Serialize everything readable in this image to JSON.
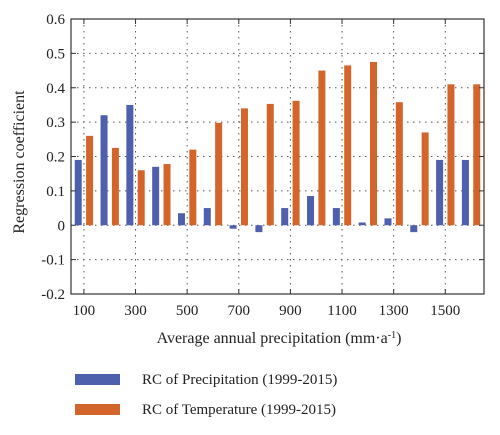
{
  "chart_data": {
    "type": "bar",
    "xlabel": "Average annual precipitation (mm·a",
    "xlabel_sup": "-1",
    "xlabel_tail": ")",
    "ylabel": "Regression coefficient",
    "ylim": [
      -0.2,
      0.6
    ],
    "yticks": [
      -0.2,
      -0.1,
      0,
      0.1,
      0.2,
      0.3,
      0.4,
      0.5,
      0.6
    ],
    "ytick_labels": [
      "-0.2",
      "-0.1",
      "0",
      "0.1",
      "0.2",
      "0.3",
      "0.4",
      "0.5",
      "0.6"
    ],
    "categories": [
      100,
      200,
      300,
      400,
      500,
      600,
      700,
      800,
      900,
      1000,
      1100,
      1200,
      1300,
      1400,
      1500,
      1600
    ],
    "xtick_values": [
      100,
      300,
      500,
      700,
      900,
      1100,
      1300,
      1500
    ],
    "xtick_labels": [
      "100",
      "300",
      "500",
      "700",
      "900",
      "1100",
      "1300",
      "1500"
    ],
    "grid": true,
    "legend_position": "bottom",
    "series": [
      {
        "name": "RC of Precipitation (1999-2015)",
        "color": "#4e5fae",
        "values": [
          0.19,
          0.32,
          0.35,
          0.17,
          0.035,
          0.05,
          -0.01,
          -0.02,
          0.05,
          0.085,
          0.05,
          0.008,
          0.02,
          -0.02,
          0.19,
          0.19
        ]
      },
      {
        "name": "RC of Temperature (1999-2015)",
        "color": "#d3652a",
        "values": [
          0.26,
          0.225,
          0.16,
          0.178,
          0.22,
          0.298,
          0.34,
          0.353,
          0.362,
          0.45,
          0.465,
          0.475,
          0.358,
          0.27,
          0.41,
          0.41
        ]
      }
    ]
  }
}
